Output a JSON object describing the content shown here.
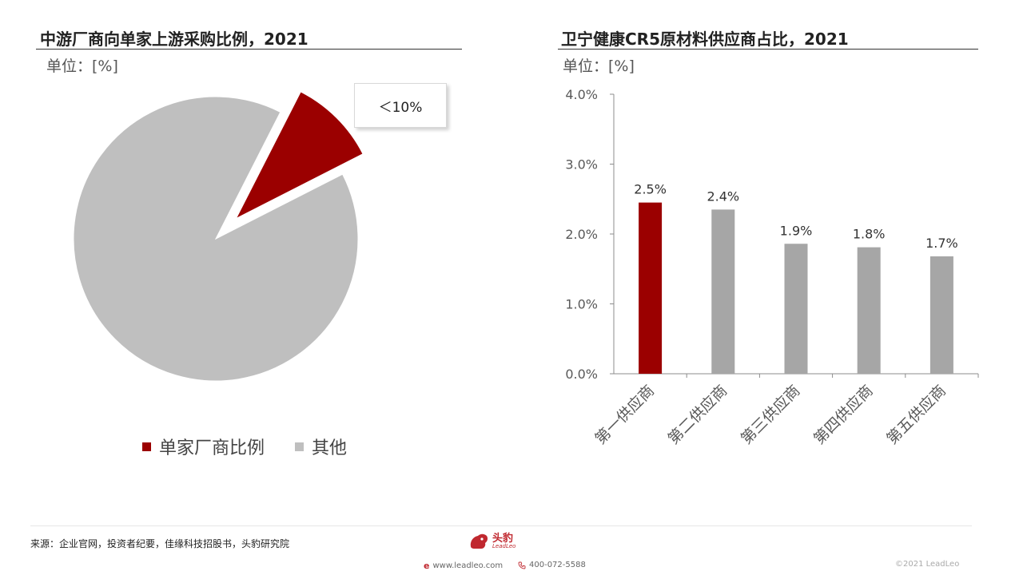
{
  "left": {
    "title": "中游厂商向单家上游采购比例，2021",
    "unit": "单位：[%]",
    "callout": "＜10%",
    "legend": [
      {
        "label": "单家厂商比例",
        "color": "#9b0000"
      },
      {
        "label": "其他",
        "color": "#bfbfbf"
      }
    ]
  },
  "right": {
    "title": "卫宁健康CR5原材料供应商占比，2021",
    "unit": "单位：[%]"
  },
  "chart_data": [
    {
      "type": "pie",
      "title": "中游厂商向单家上游采购比例，2021",
      "labels": [
        "单家厂商比例",
        "其他"
      ],
      "values": [
        10,
        90
      ],
      "annotation": "＜10%",
      "colors": [
        "#9b0000",
        "#bfbfbf"
      ],
      "legend_position": "bottom",
      "exploded_slice": "单家厂商比例"
    },
    {
      "type": "bar",
      "title": "卫宁健康CR5原材料供应商占比，2021",
      "categories": [
        "第一供应商",
        "第二供应商",
        "第三供应商",
        "第四供应商",
        "第五供应商"
      ],
      "values": [
        2.45,
        2.35,
        1.86,
        1.81,
        1.68
      ],
      "data_labels": [
        "2.5%",
        "2.4%",
        "1.9%",
        "1.8%",
        "1.7%"
      ],
      "colors": [
        "#9b0000",
        "#a6a6a6",
        "#a6a6a6",
        "#a6a6a6",
        "#a6a6a6"
      ],
      "ylim": [
        0,
        4
      ],
      "yticks": [
        "0.0%",
        "1.0%",
        "2.0%",
        "3.0%",
        "4.0%"
      ],
      "grid": false
    }
  ],
  "footer": {
    "source": "来源：企业官网，投资者纪要，佳缘科技招股书，头豹研究院",
    "logo_text": "头豹",
    "logo_sub": "LeadLeo",
    "website": "www.leadleo.com",
    "phone": "400-072-5588",
    "copyright": "©2021 LeadLeo"
  }
}
